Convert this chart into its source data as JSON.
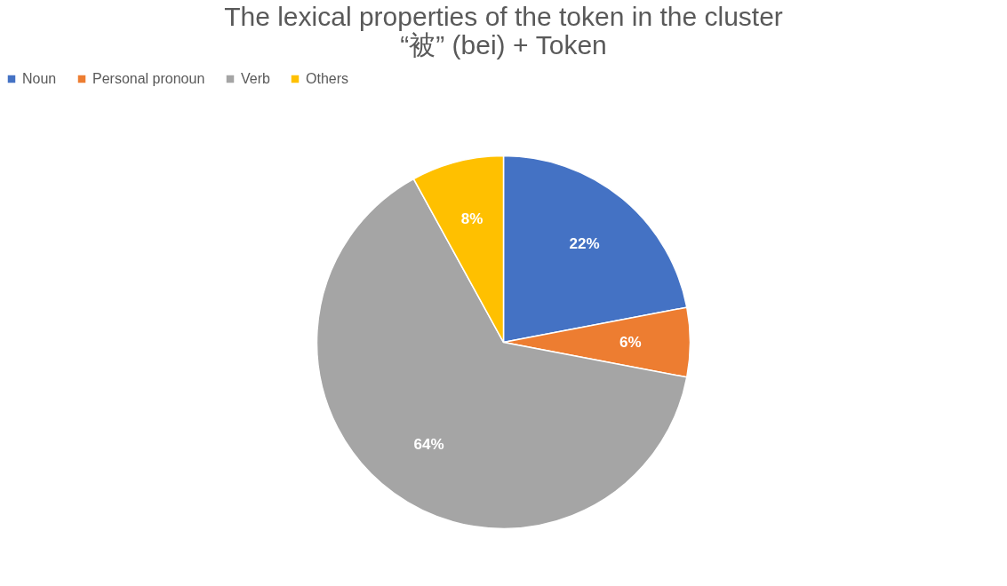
{
  "chart_data": {
    "type": "pie",
    "title": "The lexical properties of the token in the cluster “被” (bei) + Token",
    "categories": [
      "Noun",
      "Personal pronoun",
      "Verb",
      "Others"
    ],
    "values": [
      22,
      6,
      64,
      8
    ],
    "colors": [
      "#4472c4",
      "#ed7d31",
      "#a5a5a5",
      "#ffc000"
    ],
    "value_labels": [
      "22%",
      "6%",
      "64%",
      "8%"
    ],
    "legend": "top"
  }
}
